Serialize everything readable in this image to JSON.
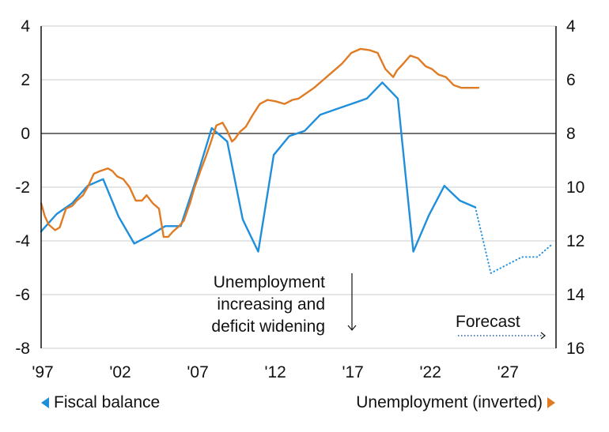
{
  "chart_data": {
    "type": "line",
    "title": "",
    "xlabel": "",
    "ylabel_left": "Fiscal balance",
    "ylabel_right": "Unemployment (inverted)",
    "xlim": [
      1997,
      2030.2
    ],
    "ylim_left": [
      -8,
      4
    ],
    "ylim_right": [
      16,
      4
    ],
    "right_axis_inverted": true,
    "grid": true,
    "x_ticks": [
      1997,
      2002,
      2007,
      2012,
      2017,
      2022,
      2027
    ],
    "x_tick_labels": [
      "'97",
      "'02",
      "'07",
      "'12",
      "'17",
      "'22",
      "'27"
    ],
    "y_left_ticks": [
      4,
      2,
      0,
      -2,
      -4,
      -6,
      -8
    ],
    "y_left_tick_labels": [
      "4",
      "2",
      "0",
      "-2",
      "-4",
      "-6",
      "-8"
    ],
    "y_right_ticks": [
      4,
      6,
      8,
      10,
      12,
      14,
      16
    ],
    "y_right_tick_labels": [
      "4",
      "6",
      "8",
      "10",
      "12",
      "14",
      "16"
    ],
    "series": [
      {
        "name": "Fiscal balance",
        "axis": "left",
        "color": "#1F8FDB",
        "style": "solid",
        "x": [
          1997,
          1998,
          1999,
          2000,
          2001,
          2002,
          2003,
          2004,
          2005,
          2006,
          2007,
          2008,
          2009,
          2010,
          2011,
          2012,
          2013,
          2014,
          2015,
          2016,
          2017,
          2018,
          2019,
          2020,
          2021,
          2022,
          2023,
          2024,
          2025
        ],
        "values": [
          -3.65,
          -3.0,
          -2.6,
          -1.95,
          -1.7,
          -3.1,
          -4.1,
          -3.8,
          -3.45,
          -3.45,
          -1.7,
          0.2,
          -0.3,
          -3.2,
          -4.4,
          -0.8,
          -0.1,
          0.1,
          0.7,
          0.9,
          1.1,
          1.3,
          1.9,
          1.3,
          -4.4,
          -3.05,
          -1.95,
          -2.5,
          -2.75
        ]
      },
      {
        "name": "Fiscal balance forecast",
        "axis": "left",
        "color": "#1F8FDB",
        "style": "dotted",
        "x": [
          2025,
          2026,
          2027,
          2028,
          2029,
          2030
        ],
        "values": [
          -2.75,
          -5.2,
          -4.9,
          -4.6,
          -4.6,
          -4.1
        ]
      },
      {
        "name": "Unemployment (inverted)",
        "axis": "right",
        "color": "#E07B24",
        "style": "solid",
        "x": [
          1997.0,
          1997.25,
          1997.5,
          1997.9,
          1998.2,
          1998.6,
          1999.0,
          1999.3,
          1999.7,
          2000.0,
          2000.4,
          2000.8,
          2001.3,
          2001.6,
          2001.9,
          2002.3,
          2002.7,
          2003.1,
          2003.5,
          2003.8,
          2004.2,
          2004.6,
          2004.9,
          2005.2,
          2005.5,
          2005.9,
          2006.2,
          2006.6,
          2006.9,
          2007.3,
          2007.6,
          2007.9,
          2008.3,
          2008.7,
          2009.0,
          2009.3,
          2009.5,
          2009.8,
          2010.2,
          2010.6,
          2011.1,
          2011.6,
          2012.1,
          2012.7,
          2013.2,
          2013.6,
          2014.1,
          2014.6,
          2015.2,
          2015.8,
          2016.4,
          2017.0,
          2017.6,
          2018.2,
          2018.7,
          2019.2,
          2019.7,
          2019.95,
          2020.35,
          2020.8,
          2021.3,
          2021.8,
          2022.2,
          2022.6,
          2023.1,
          2023.6,
          2024.1,
          2024.7,
          2025.2
        ],
        "values": [
          10.6,
          11.1,
          11.4,
          11.6,
          11.5,
          10.8,
          10.7,
          10.5,
          10.3,
          10.0,
          9.5,
          9.4,
          9.3,
          9.4,
          9.6,
          9.7,
          10.0,
          10.5,
          10.5,
          10.3,
          10.6,
          10.8,
          11.85,
          11.85,
          11.65,
          11.45,
          11.25,
          10.6,
          10.0,
          9.35,
          8.9,
          8.4,
          7.7,
          7.6,
          7.9,
          8.3,
          8.2,
          7.95,
          7.75,
          7.35,
          6.9,
          6.75,
          6.8,
          6.9,
          6.75,
          6.7,
          6.5,
          6.3,
          6.0,
          5.7,
          5.4,
          5.0,
          4.85,
          4.9,
          5.0,
          5.6,
          5.9,
          5.65,
          5.4,
          5.1,
          5.2,
          5.5,
          5.6,
          5.8,
          5.9,
          6.2,
          6.3,
          6.3,
          6.3
        ]
      }
    ],
    "annotations": [
      {
        "text_lines": [
          "Unemployment",
          "increasing and",
          "deficit widening"
        ],
        "arrow": "down"
      },
      {
        "text": "Forecast",
        "arrow": "right-dotted"
      }
    ],
    "legend": [
      {
        "label": "Fiscal balance",
        "marker": "left-triangle",
        "color": "#1F8FDB",
        "placement": "bottom-left"
      },
      {
        "label": "Unemployment (inverted)",
        "marker": "right-triangle",
        "color": "#E07B24",
        "placement": "bottom-right"
      }
    ]
  }
}
